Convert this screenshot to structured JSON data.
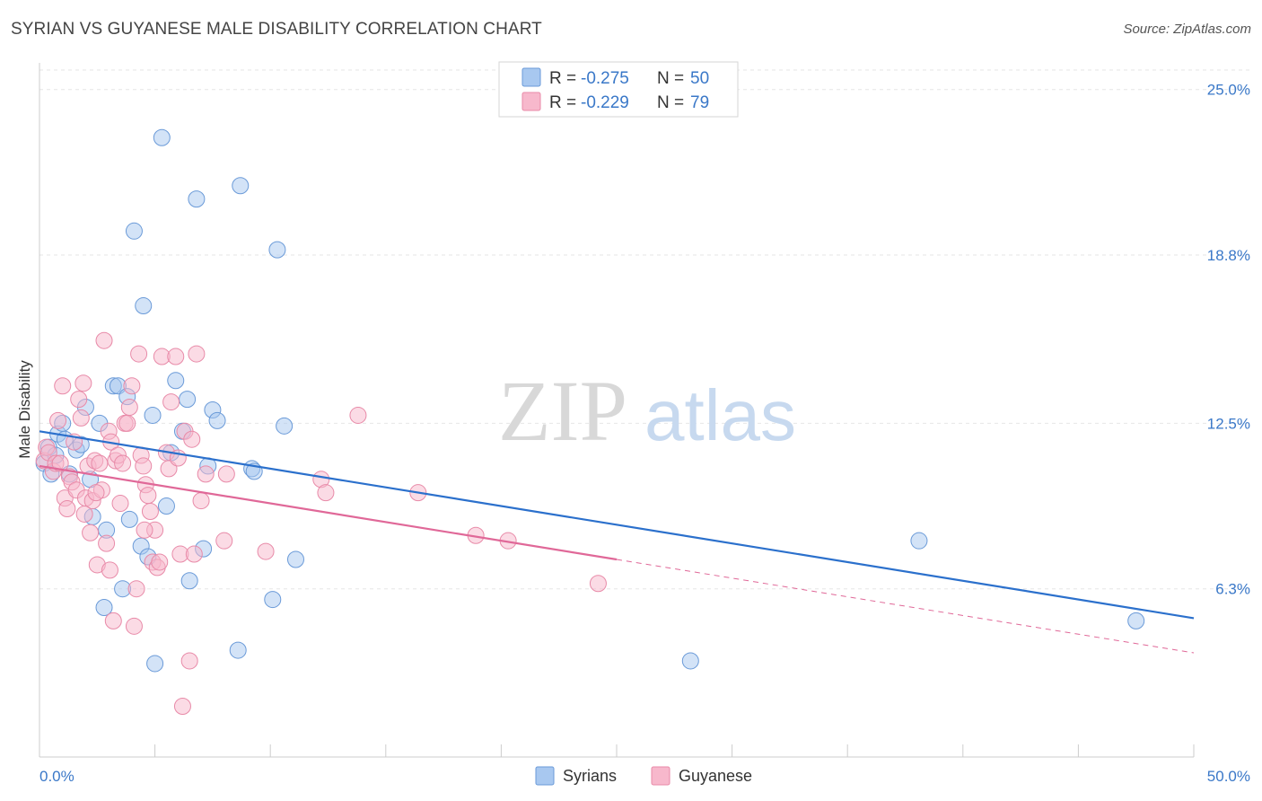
{
  "header": {
    "title": "SYRIAN VS GUYANESE MALE DISABILITY CORRELATION CHART",
    "source": "Source: ZipAtlas.com"
  },
  "watermark": {
    "zip": "ZIP",
    "atlas": "atlas"
  },
  "stats_box": {
    "rows": [
      {
        "r_label": "R = ",
        "r_value": "-0.275",
        "n_label": "N = ",
        "n_value": "50",
        "color": "#a8c8f0"
      },
      {
        "r_label": "R = ",
        "r_value": "-0.229",
        "n_label": "N = ",
        "n_value": "79",
        "color": "#f7b8cc"
      }
    ]
  },
  "legend": {
    "items": [
      {
        "label": "Syrians",
        "color": "#a8c8f0"
      },
      {
        "label": "Guyanese",
        "color": "#f7b8cc"
      }
    ]
  },
  "chart_data": {
    "type": "scatter",
    "title": "SYRIAN VS GUYANESE MALE DISABILITY CORRELATION CHART",
    "xlabel": "",
    "ylabel": "Male Disability",
    "xlim": [
      0,
      50
    ],
    "ylim": [
      0,
      26
    ],
    "x_tick_labels": {
      "min": "0.0%",
      "max": "50.0%"
    },
    "y_ticks": [
      {
        "value": 6.3,
        "label": "6.3%"
      },
      {
        "value": 12.5,
        "label": "12.5%"
      },
      {
        "value": 18.8,
        "label": "18.8%"
      },
      {
        "value": 25.0,
        "label": "25.0%"
      }
    ],
    "grid": true,
    "legend_position": "bottom-center",
    "series": [
      {
        "name": "Syrians",
        "color": "#a8c8f0",
        "stroke": "#6a9ad8",
        "trend_color": "#2b70cc",
        "trend": {
          "x0": 0,
          "y0": 12.2,
          "x1": 50,
          "y1": 5.2,
          "dash_from": null
        },
        "points": [
          [
            0.2,
            11.0
          ],
          [
            0.4,
            11.6
          ],
          [
            0.5,
            10.6
          ],
          [
            0.7,
            11.3
          ],
          [
            0.8,
            12.1
          ],
          [
            1.0,
            12.5
          ],
          [
            1.1,
            11.9
          ],
          [
            1.3,
            10.6
          ],
          [
            1.6,
            11.5
          ],
          [
            1.8,
            11.7
          ],
          [
            2.0,
            13.1
          ],
          [
            2.2,
            10.4
          ],
          [
            2.3,
            9.0
          ],
          [
            2.6,
            12.5
          ],
          [
            2.8,
            5.6
          ],
          [
            2.9,
            8.5
          ],
          [
            3.2,
            13.9
          ],
          [
            3.4,
            13.9
          ],
          [
            3.6,
            6.3
          ],
          [
            3.8,
            13.5
          ],
          [
            3.9,
            8.9
          ],
          [
            4.1,
            19.7
          ],
          [
            4.4,
            7.9
          ],
          [
            4.5,
            16.9
          ],
          [
            4.7,
            7.5
          ],
          [
            4.9,
            12.8
          ],
          [
            5.0,
            3.5
          ],
          [
            5.3,
            23.2
          ],
          [
            5.5,
            9.4
          ],
          [
            5.7,
            11.4
          ],
          [
            5.9,
            14.1
          ],
          [
            6.2,
            12.2
          ],
          [
            6.4,
            13.4
          ],
          [
            6.5,
            6.6
          ],
          [
            6.8,
            20.9
          ],
          [
            7.1,
            7.8
          ],
          [
            7.3,
            10.9
          ],
          [
            7.5,
            13.0
          ],
          [
            7.7,
            12.6
          ],
          [
            8.6,
            4.0
          ],
          [
            8.7,
            21.4
          ],
          [
            9.2,
            10.8
          ],
          [
            9.3,
            10.7
          ],
          [
            10.1,
            5.9
          ],
          [
            10.3,
            19.0
          ],
          [
            10.6,
            12.4
          ],
          [
            11.1,
            7.4
          ],
          [
            28.2,
            3.6
          ],
          [
            38.1,
            8.1
          ],
          [
            47.5,
            5.1
          ]
        ]
      },
      {
        "name": "Guyanese",
        "color": "#f7b8cc",
        "stroke": "#e88aa8",
        "trend_color": "#e06898",
        "trend": {
          "x0": 0,
          "y0": 10.9,
          "x1": 50,
          "y1": 3.9,
          "dash_from": 25
        },
        "points": [
          [
            0.2,
            11.1
          ],
          [
            0.3,
            11.6
          ],
          [
            0.4,
            11.4
          ],
          [
            0.6,
            10.7
          ],
          [
            0.7,
            11.0
          ],
          [
            0.8,
            12.6
          ],
          [
            0.9,
            11.0
          ],
          [
            1.0,
            13.9
          ],
          [
            1.1,
            9.7
          ],
          [
            1.2,
            9.3
          ],
          [
            1.3,
            10.5
          ],
          [
            1.4,
            10.3
          ],
          [
            1.5,
            11.8
          ],
          [
            1.6,
            10.0
          ],
          [
            1.7,
            13.4
          ],
          [
            1.8,
            12.7
          ],
          [
            1.9,
            14.0
          ],
          [
            2.0,
            9.7
          ],
          [
            2.1,
            10.9
          ],
          [
            2.2,
            8.4
          ],
          [
            2.3,
            9.6
          ],
          [
            2.4,
            11.1
          ],
          [
            2.5,
            7.2
          ],
          [
            2.6,
            11.0
          ],
          [
            2.7,
            10.0
          ],
          [
            2.8,
            15.6
          ],
          [
            2.9,
            8.0
          ],
          [
            3.0,
            12.2
          ],
          [
            3.1,
            11.8
          ],
          [
            3.2,
            5.1
          ],
          [
            3.3,
            11.1
          ],
          [
            3.4,
            11.3
          ],
          [
            3.5,
            9.5
          ],
          [
            3.6,
            11.0
          ],
          [
            3.7,
            12.5
          ],
          [
            3.8,
            12.5
          ],
          [
            3.9,
            13.1
          ],
          [
            4.0,
            13.9
          ],
          [
            4.1,
            4.9
          ],
          [
            4.2,
            6.3
          ],
          [
            4.3,
            15.1
          ],
          [
            4.4,
            11.3
          ],
          [
            4.5,
            10.9
          ],
          [
            4.6,
            10.2
          ],
          [
            4.7,
            9.8
          ],
          [
            4.8,
            9.2
          ],
          [
            4.9,
            7.3
          ],
          [
            5.0,
            8.5
          ],
          [
            5.1,
            7.1
          ],
          [
            5.2,
            7.3
          ],
          [
            5.3,
            15.0
          ],
          [
            5.5,
            11.4
          ],
          [
            5.6,
            10.8
          ],
          [
            5.7,
            13.3
          ],
          [
            5.9,
            15.0
          ],
          [
            6.0,
            11.2
          ],
          [
            6.1,
            7.6
          ],
          [
            6.2,
            1.9
          ],
          [
            6.3,
            12.2
          ],
          [
            6.5,
            3.6
          ],
          [
            6.6,
            11.9
          ],
          [
            6.7,
            7.6
          ],
          [
            6.8,
            15.1
          ],
          [
            7.0,
            9.6
          ],
          [
            7.2,
            10.6
          ],
          [
            8.0,
            8.1
          ],
          [
            8.1,
            10.6
          ],
          [
            9.8,
            7.7
          ],
          [
            12.2,
            10.4
          ],
          [
            12.4,
            9.9
          ],
          [
            13.8,
            12.8
          ],
          [
            16.4,
            9.9
          ],
          [
            18.9,
            8.3
          ],
          [
            20.3,
            8.1
          ],
          [
            24.2,
            6.5
          ],
          [
            2.45,
            9.9
          ],
          [
            3.05,
            7.0
          ],
          [
            1.95,
            9.1
          ],
          [
            4.55,
            8.5
          ]
        ]
      }
    ]
  }
}
